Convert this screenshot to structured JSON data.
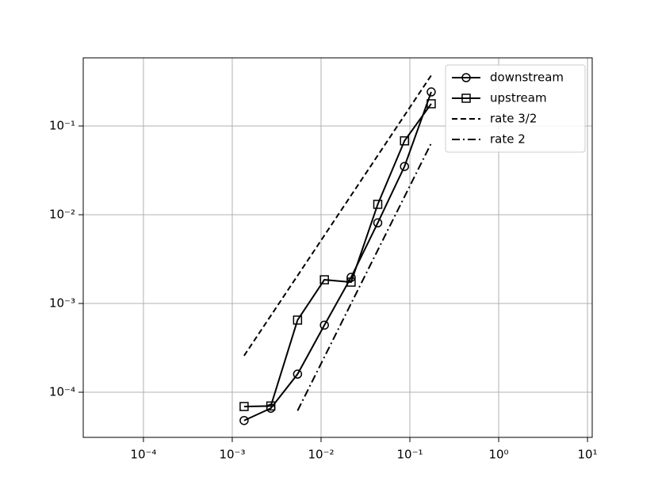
{
  "chart_data": {
    "type": "line",
    "xscale": "log",
    "yscale": "log",
    "grid": true,
    "legend": "upper right",
    "xlim": [
      2.1e-05,
      11.3
    ],
    "ylim": [
      3.1e-05,
      0.586
    ],
    "xticks": [
      {
        "value": 0.0001,
        "label": "10⁻⁴"
      },
      {
        "value": 0.001,
        "label": "10⁻³"
      },
      {
        "value": 0.01,
        "label": "10⁻²"
      },
      {
        "value": 0.1,
        "label": "10⁻¹"
      },
      {
        "value": 1,
        "label": "10⁰"
      },
      {
        "value": 10,
        "label": "10¹"
      }
    ],
    "yticks": [
      {
        "value": 0.0001,
        "label": "10⁻⁴"
      },
      {
        "value": 0.001,
        "label": "10⁻³"
      },
      {
        "value": 0.01,
        "label": "10⁻²"
      },
      {
        "value": 0.1,
        "label": "10⁻¹"
      }
    ],
    "series": [
      {
        "name": "downstream",
        "color": "#000000",
        "dash": "solid",
        "marker": "circle",
        "x": [
          0.00136,
          0.00272,
          0.00544,
          0.0109,
          0.0218,
          0.0435,
          0.087,
          0.174
        ],
        "values": [
          4.8e-05,
          6.6e-05,
          0.00016,
          0.00057,
          0.00197,
          0.0081,
          0.035,
          0.242
        ]
      },
      {
        "name": "upstream",
        "color": "#000000",
        "dash": "solid",
        "marker": "square",
        "x": [
          0.00136,
          0.00272,
          0.00544,
          0.0109,
          0.0218,
          0.0435,
          0.087,
          0.174
        ],
        "values": [
          6.9e-05,
          7e-05,
          0.00065,
          0.00185,
          0.00174,
          0.0131,
          0.068,
          0.178
        ]
      },
      {
        "name": "rate 3/2",
        "color": "#000000",
        "dash": "dashed",
        "marker": null,
        "x": [
          0.00136,
          0.174
        ],
        "values": [
          0.000258,
          0.372
        ]
      },
      {
        "name": "rate 2",
        "color": "#000000",
        "dash": "dashdot",
        "marker": null,
        "x": [
          0.00544,
          0.174
        ],
        "values": [
          6.2e-05,
          0.064
        ]
      }
    ]
  }
}
